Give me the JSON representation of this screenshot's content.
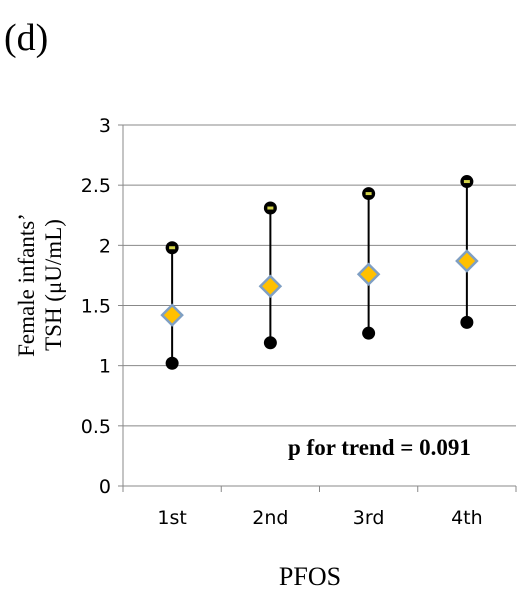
{
  "chart_data": {
    "panel_label": "(d)",
    "type": "scatter",
    "xlabel": "PFOS",
    "ylabel_line1": "Female infants’",
    "ylabel_line2": "TSH (μU/mL)",
    "annotation": "p for trend = 0.091",
    "categories": [
      "1st",
      "2nd",
      "3rd",
      "4th"
    ],
    "ylim": [
      0,
      3
    ],
    "yticks": [
      0,
      0.5,
      1,
      1.5,
      2,
      2.5,
      3
    ],
    "ytick_labels": [
      "0",
      "0.5",
      "1",
      "1.5",
      "2",
      "2.5",
      "3"
    ],
    "grid": true,
    "series": [
      {
        "role": "point_estimate",
        "marker": "diamond",
        "values": [
          1.42,
          1.66,
          1.76,
          1.87
        ]
      },
      {
        "role": "ci_lower",
        "marker": "circle",
        "values": [
          1.02,
          1.19,
          1.27,
          1.36
        ]
      },
      {
        "role": "ci_upper",
        "marker": "circle",
        "values": [
          1.98,
          2.31,
          2.43,
          2.53
        ]
      }
    ],
    "colors": {
      "diamond_fill": "#FFC000",
      "diamond_stroke": "#7F9FC3",
      "ci_marker": "#000000",
      "ci_upper_highlight": "#D4D44A",
      "grid": "#888888",
      "text": "#000000"
    }
  }
}
